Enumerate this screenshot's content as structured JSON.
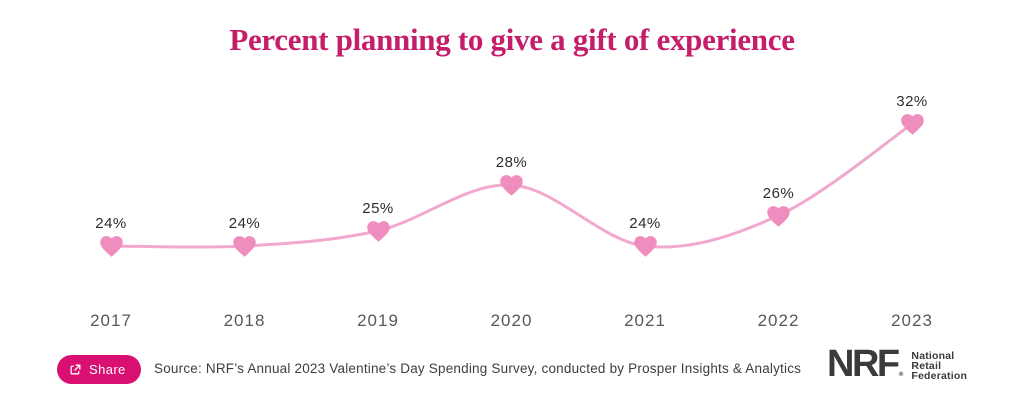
{
  "title": "Percent planning to give a gift of experience",
  "chart_data": {
    "type": "line",
    "title": "Percent planning to give a gift of experience",
    "categories": [
      "2017",
      "2018",
      "2019",
      "2020",
      "2021",
      "2022",
      "2023"
    ],
    "values": [
      24,
      24,
      25,
      28,
      24,
      26,
      32
    ],
    "point_labels": [
      "24%",
      "24%",
      "25%",
      "28%",
      "24%",
      "26%",
      "32%"
    ],
    "xlabel": "",
    "ylabel": "",
    "ylim": [
      20,
      36
    ],
    "grid": false,
    "legend": "none",
    "marker": "heart",
    "line_color": "#f2a9cf",
    "marker_color": "#ef8dbe",
    "point_label_color": "#2e2e30",
    "axis_label_color": "#58585a"
  },
  "footer": {
    "share_label": "Share",
    "source": "Source: NRF’s Annual 2023 Valentine’s Day Spending Survey, conducted by Prosper Insights & Analytics",
    "logo": {
      "acronym": "NRF",
      "registered": "®",
      "lines": [
        "National",
        "Retail",
        "Federation"
      ]
    }
  },
  "colors": {
    "title": "#c41e6a",
    "share_button": "#d90f72",
    "logo_text": "#3a3a3c"
  }
}
